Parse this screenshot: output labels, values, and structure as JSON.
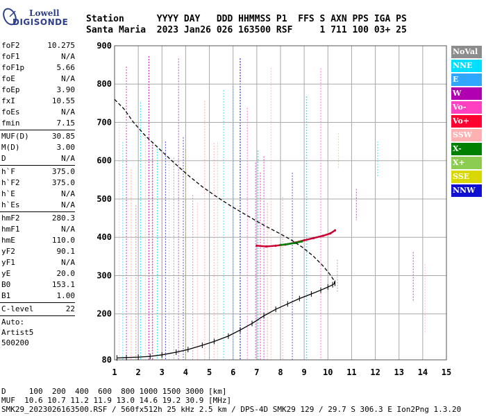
{
  "logo": {
    "line1": "Lowell",
    "line2": "DIGISONDE"
  },
  "header": {
    "line1": "Station      YYYY DAY   DDD HHMMSS P1  FFS S AXN PPS IGA PS",
    "line2": "Santa Maria  2023 Jan26 026 163500 RSF     1 711 100 03+ 25"
  },
  "params": {
    "group1": [
      {
        "k": "foF2",
        "v": "10.275"
      },
      {
        "k": "foF1",
        "v": "N/A"
      },
      {
        "k": "foF1p",
        "v": "5.66"
      },
      {
        "k": "foE",
        "v": "N/A"
      },
      {
        "k": "foEp",
        "v": "3.90"
      },
      {
        "k": "fxI",
        "v": "10.55"
      },
      {
        "k": "foEs",
        "v": "N/A"
      },
      {
        "k": "fmin",
        "v": "7.15"
      }
    ],
    "group2": [
      {
        "k": "MUF(D)",
        "v": "30.85"
      },
      {
        "k": "M(D)",
        "v": "3.00"
      },
      {
        "k": "D",
        "v": "N/A"
      }
    ],
    "group3": [
      {
        "k": "h`F",
        "v": "375.0"
      },
      {
        "k": "h`F2",
        "v": "375.0"
      },
      {
        "k": "h`E",
        "v": "N/A"
      },
      {
        "k": "h`Es",
        "v": "N/A"
      }
    ],
    "group4": [
      {
        "k": "hmF2",
        "v": "280.3"
      },
      {
        "k": "hmF1",
        "v": "N/A"
      },
      {
        "k": "hmE",
        "v": "110.0"
      },
      {
        "k": "yF2",
        "v": "90.1"
      },
      {
        "k": "yF1",
        "v": "N/A"
      },
      {
        "k": "yE",
        "v": "20.0"
      },
      {
        "k": "B0",
        "v": "153.1"
      },
      {
        "k": "B1",
        "v": "1.00"
      }
    ],
    "group5": [
      {
        "k": "C-level",
        "v": "22"
      }
    ],
    "auto": [
      "Auto:",
      "Artist5",
      "500200"
    ]
  },
  "legend": [
    {
      "label": "NoVal",
      "color": "#8c8c8c"
    },
    {
      "label": "NNE",
      "color": "#00dfff"
    },
    {
      "label": "E",
      "color": "#2fa6ff"
    },
    {
      "label": "W",
      "color": "#b000b0"
    },
    {
      "label": "Vo-",
      "color": "#ff40c0"
    },
    {
      "label": "Vo+",
      "color": "#ff0030"
    },
    {
      "label": "SSW",
      "color": "#ffb0b0"
    },
    {
      "label": "X-",
      "color": "#008000"
    },
    {
      "label": "X+",
      "color": "#8ccc50"
    },
    {
      "label": "SSE",
      "color": "#d8d800"
    },
    {
      "label": "NNW",
      "color": "#1010d0"
    }
  ],
  "footer": {
    "line1": "D     100  200  400  600  800 1000 1500 3000 [km]",
    "line2": "MUF  10.6 10.7 11.2 11.9 13.0 14.6 19.2 30.9 [MHz]",
    "line3": "SMK29_2023026163500.RSF / 560fx512h 25 kHz 2.5 km / DPS-4D SMK29 129 / 29.7 S 306.3 E Ion2Png 1.3.20"
  },
  "chart_data": {
    "type": "scatter",
    "xlim": [
      1,
      15
    ],
    "ylim": [
      80,
      900
    ],
    "xticks": [
      "1",
      "2",
      "3",
      "4",
      "5",
      "6",
      "7",
      "8",
      "9",
      "10",
      "11",
      "12",
      "13",
      "14",
      "15"
    ],
    "yticks": [
      "80",
      "200",
      "300",
      "400",
      "500",
      "600",
      "700",
      "800",
      "900"
    ],
    "grid": true,
    "series": [
      {
        "name": "Vo+",
        "style": "trace",
        "color": "#cc0030",
        "x": [
          7.0,
          7.4,
          7.8,
          8.2,
          8.6,
          9.0,
          9.4,
          9.8,
          10.1,
          10.3
        ],
        "y": [
          378,
          376,
          378,
          381,
          386,
          392,
          398,
          404,
          410,
          418
        ]
      },
      {
        "name": "X-",
        "style": "trace",
        "color": "#008000",
        "x": [
          8.0,
          8.3,
          8.6,
          8.9
        ],
        "y": [
          380,
          382,
          385,
          389
        ]
      },
      {
        "style": "profile-dashed",
        "color": "#000000",
        "x": [
          1.0,
          1.4,
          1.8,
          2.3,
          2.9,
          3.5,
          4.1,
          4.7,
          5.3,
          5.9,
          6.5,
          7.0,
          7.4,
          7.9,
          8.4,
          8.9,
          9.4,
          9.8,
          10.1,
          10.25,
          10.28
        ],
        "y": [
          760,
          735,
          700,
          665,
          630,
          595,
          562,
          532,
          506,
          482,
          460,
          442,
          428,
          412,
          395,
          375,
          350,
          325,
          302,
          288,
          280
        ]
      },
      {
        "style": "profile-solid",
        "color": "#000000",
        "x": [
          1.1,
          1.5,
          2.0,
          2.5,
          3.0,
          3.6,
          4.1,
          4.7,
          5.2,
          5.8,
          6.3,
          6.8,
          7.3,
          7.8,
          8.3,
          8.8,
          9.3,
          9.7,
          10.0,
          10.2,
          10.3
        ],
        "y": [
          85,
          86,
          87,
          89,
          93,
          100,
          107,
          118,
          128,
          142,
          158,
          175,
          195,
          212,
          226,
          240,
          252,
          262,
          270,
          276,
          280
        ]
      }
    ]
  }
}
